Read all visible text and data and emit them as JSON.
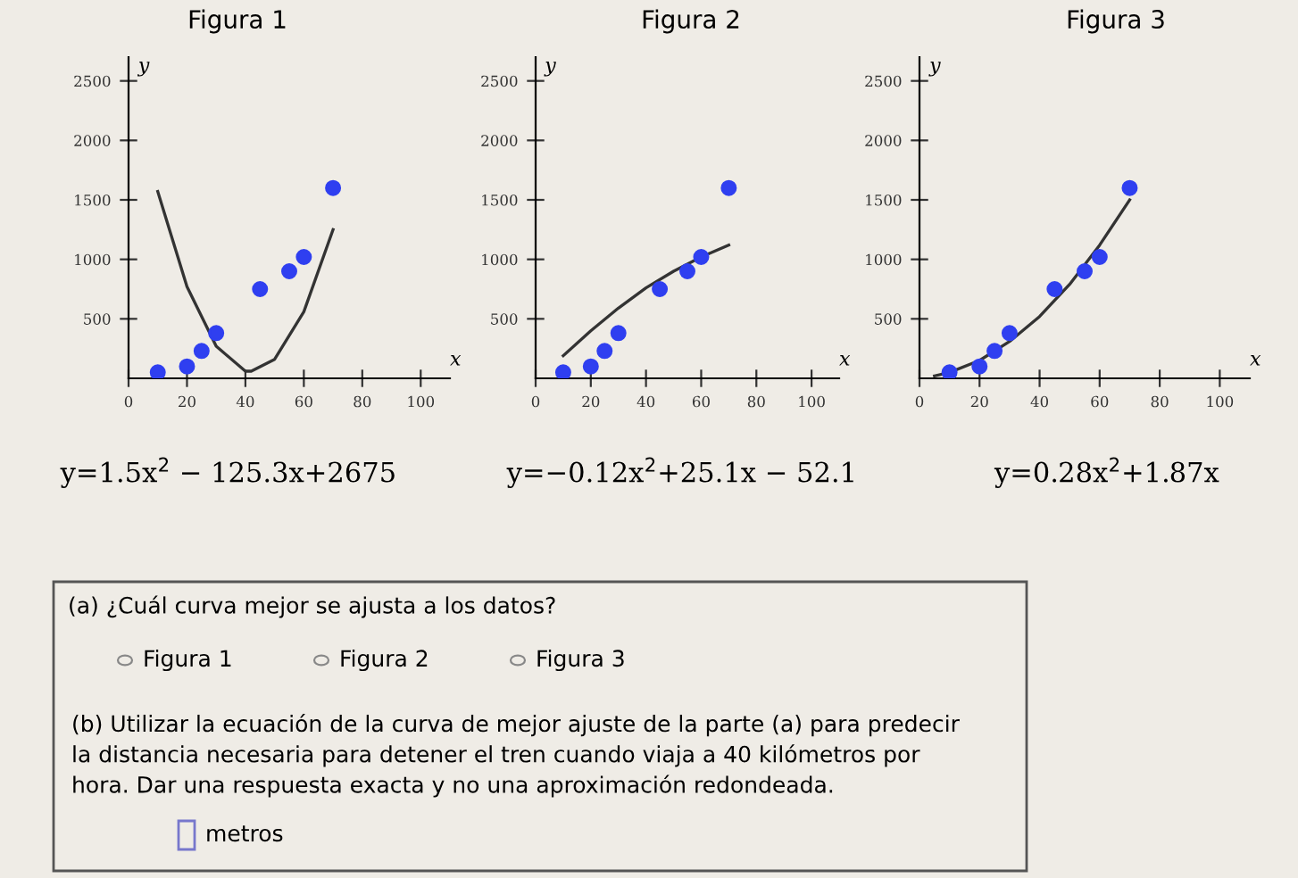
{
  "chart_data": [
    {
      "type": "scatter",
      "title": "Figura 1",
      "xlabel": "x",
      "ylabel": "y",
      "xlim": [
        0,
        110
      ],
      "ylim": [
        0,
        2700
      ],
      "xticks": [
        0,
        20,
        40,
        60,
        80,
        100
      ],
      "yticks": [
        500,
        1000,
        1500,
        2000,
        2500
      ],
      "marker": "circle",
      "grid": false,
      "series": [
        {
          "type": "scatter",
          "color": "#2f3ff0",
          "x": [
            10,
            20,
            25,
            30,
            45,
            55,
            60,
            70
          ],
          "values": [
            50,
            100,
            230,
            380,
            750,
            900,
            1020,
            1600
          ]
        },
        {
          "type": "line",
          "color": "#333333",
          "marker": "none",
          "x": [
            10,
            20,
            30,
            40,
            42,
            50,
            60,
            70
          ],
          "values": [
            1570,
            770,
            270,
            60,
            60,
            160,
            560,
            1250
          ]
        }
      ],
      "annotations": [
        "y=1.5x$^{2}$ − 125.3x+2675"
      ]
    },
    {
      "type": "scatter",
      "title": "Figura 2",
      "xlabel": "x",
      "ylabel": "y",
      "xlim": [
        0,
        110
      ],
      "ylim": [
        0,
        2700
      ],
      "xticks": [
        0,
        20,
        40,
        60,
        80,
        100
      ],
      "yticks": [
        500,
        1000,
        1500,
        2000,
        2500
      ],
      "marker": "circle",
      "grid": false,
      "series": [
        {
          "type": "scatter",
          "color": "#2f3ff0",
          "x": [
            10,
            20,
            25,
            30,
            45,
            55,
            60,
            70
          ],
          "values": [
            50,
            100,
            230,
            380,
            750,
            900,
            1020,
            1600
          ]
        },
        {
          "type": "line",
          "color": "#333333",
          "marker": "none",
          "x": [
            10,
            20,
            30,
            40,
            50,
            60,
            70
          ],
          "values": [
            190,
            400,
            590,
            760,
            900,
            1020,
            1120
          ]
        }
      ],
      "annotations": [
        "y=−0.12x$^{2}$+25.1x − 52.1"
      ]
    },
    {
      "type": "scatter",
      "title": "Figura 3",
      "xlabel": "x",
      "ylabel": "y",
      "xlim": [
        0,
        110
      ],
      "ylim": [
        0,
        2700
      ],
      "xticks": [
        0,
        20,
        40,
        60,
        80,
        100
      ],
      "yticks": [
        500,
        1000,
        1500,
        2000,
        2500
      ],
      "marker": "circle",
      "grid": false,
      "series": [
        {
          "type": "scatter",
          "color": "#2f3ff0",
          "x": [
            10,
            20,
            25,
            30,
            45,
            55,
            60,
            70
          ],
          "values": [
            50,
            100,
            230,
            380,
            750,
            900,
            1020,
            1600
          ]
        },
        {
          "type": "line",
          "color": "#333333",
          "marker": "none",
          "x": [
            5,
            10,
            20,
            30,
            40,
            50,
            60,
            70
          ],
          "values": [
            20,
            50,
            150,
            310,
            520,
            790,
            1120,
            1500
          ]
        }
      ],
      "annotations": [
        "y=0.28x$^{2}$+1.87x"
      ]
    },
    {
      "type": "other",
      "annotations": [
        "(a) ¿Cuál curva mejor se ajusta a los datos?",
        "Figura 1",
        "Figura 2",
        "Figura 3",
        "(b) Utilizar la ecuación de la curva de mejor ajuste de la parte (a) para predecir\nla distancia necesaria para detener el tren cuando viaja a 40 kilómetros por\nhora. Dar una respuesta exacta y no una aproximación redondeada.",
        "metros"
      ]
    }
  ]
}
